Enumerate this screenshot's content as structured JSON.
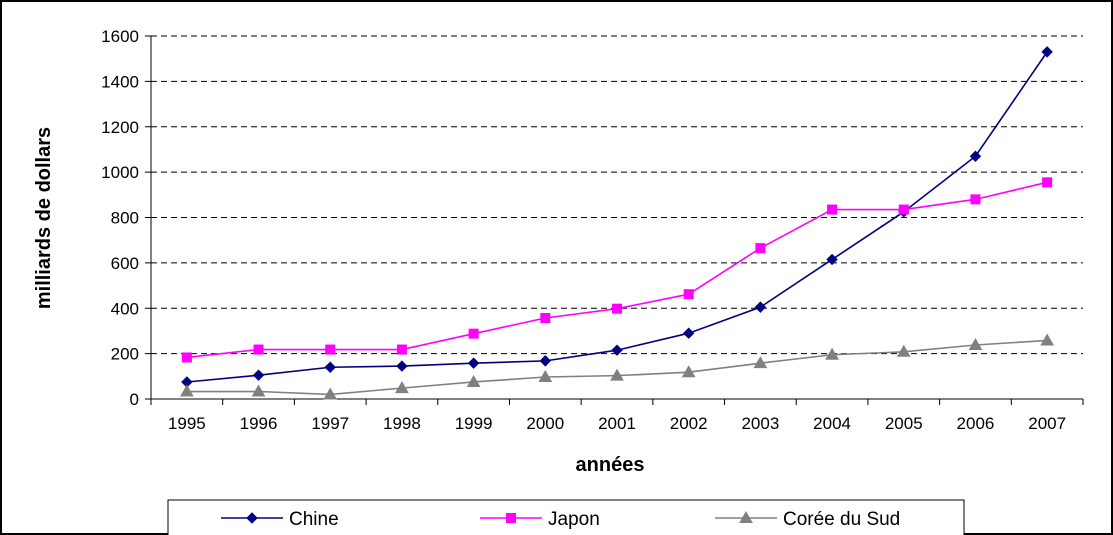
{
  "chart_data": {
    "type": "line",
    "title": "",
    "xlabel": "années",
    "ylabel": "milliards de dollars",
    "ylim": [
      0,
      1600
    ],
    "yticks": [
      "0",
      "200",
      "400",
      "600",
      "800",
      "1000",
      "1200",
      "1400",
      "1600"
    ],
    "categories": [
      "1995",
      "1996",
      "1997",
      "1998",
      "1999",
      "2000",
      "2001",
      "2002",
      "2003",
      "2004",
      "2005",
      "2006",
      "2007"
    ],
    "grid": "horizontal dashed",
    "legend_position": "bottom",
    "series": [
      {
        "name": "Chine",
        "color": "#000080",
        "marker": "diamond",
        "values": [
          75,
          105,
          140,
          145,
          158,
          168,
          215,
          290,
          405,
          615,
          825,
          1070,
          1530
        ]
      },
      {
        "name": "Japon",
        "color": "#ff00ff",
        "marker": "square",
        "values": [
          183,
          218,
          218,
          218,
          288,
          357,
          398,
          462,
          665,
          835,
          835,
          880,
          955
        ]
      },
      {
        "name": "Corée du Sud",
        "color": "#808080",
        "marker": "triangle",
        "values": [
          33,
          33,
          20,
          48,
          75,
          97,
          103,
          118,
          158,
          195,
          208,
          238,
          258
        ]
      }
    ]
  }
}
